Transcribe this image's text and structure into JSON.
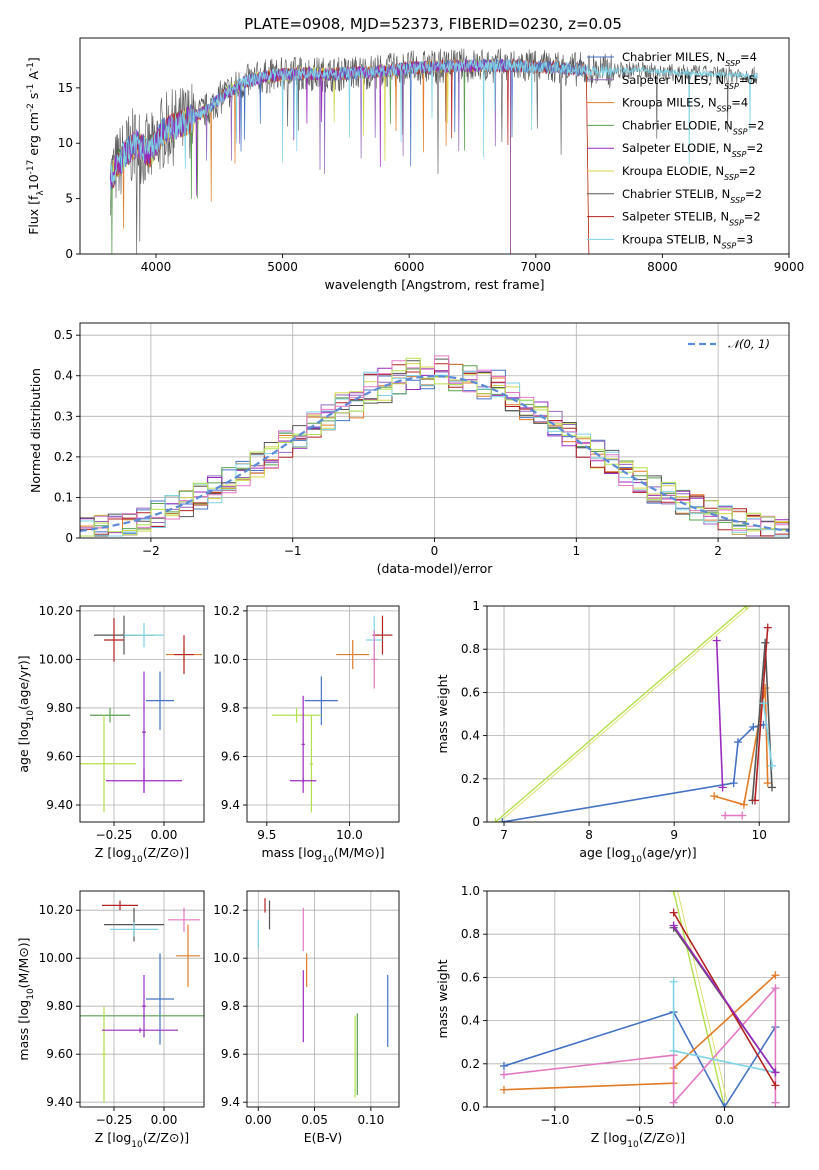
{
  "figure": {
    "title": "PLATE=0908, MJD=52373, FIBERID=0230, z=0.05"
  },
  "colors": {
    "Chabrier MILES": "#4472c4",
    "Salpeter MILES": "#9467bd",
    "Kroupa MILES": "#e07b28",
    "Chabrier ELODIE": "#59a14f",
    "Salpeter ELODIE": "#9a2bbf",
    "Kroupa ELODIE": "#d6d64a",
    "Chabrier STELIB": "#555555",
    "Salpeter STELIB": "#b22222",
    "Kroupa STELIB": "#7fd3e6",
    "normal": "#5b8bd9",
    "lime": "#b4e04d",
    "pink": "#e377c2"
  },
  "chart_data": [
    {
      "id": "spectrum",
      "type": "line",
      "xlabel": "wavelength [Angstrom, rest frame]",
      "ylabel": "Flux [f_λ10^-17 erg cm^-2 s^-1 A^-1]",
      "xlim": [
        3400,
        9000
      ],
      "ylim": [
        0,
        19.5
      ],
      "xticks": [
        4000,
        5000,
        6000,
        7000,
        8000,
        9000
      ],
      "yticks": [
        0,
        5,
        10,
        15
      ],
      "grid": false,
      "legend_placement": "right",
      "legend": [
        {
          "label": "Chabrier MILES, N_SSP=4",
          "color_key": "Chabrier MILES"
        },
        {
          "label": "Salpeter MILES, N_SSP=5",
          "color_key": "Salpeter MILES"
        },
        {
          "label": "Kroupa MILES, N_SSP=4",
          "color_key": "Kroupa MILES"
        },
        {
          "label": "Chabrier ELODIE, N_SSP=2",
          "color_key": "Chabrier ELODIE"
        },
        {
          "label": "Salpeter ELODIE, N_SSP=2",
          "color_key": "Salpeter ELODIE"
        },
        {
          "label": "Kroupa ELODIE, N_SSP=2",
          "color_key": "Kroupa ELODIE"
        },
        {
          "label": "Chabrier STELIB, N_SSP=2",
          "color_key": "Chabrier STELIB"
        },
        {
          "label": "Salpeter STELIB, N_SSP=2",
          "color_key": "Salpeter STELIB"
        },
        {
          "label": "Kroupa STELIB, N_SSP=3",
          "color_key": "Kroupa STELIB"
        }
      ],
      "envelope": [
        [
          3650,
          7
        ],
        [
          3750,
          9
        ],
        [
          3850,
          10
        ],
        [
          3950,
          9
        ],
        [
          4050,
          11
        ],
        [
          4150,
          11.5
        ],
        [
          4250,
          12
        ],
        [
          4400,
          13
        ],
        [
          4550,
          14.5
        ],
        [
          4700,
          15.5
        ],
        [
          4850,
          16
        ],
        [
          5000,
          16.2
        ],
        [
          5200,
          16.3
        ],
        [
          5400,
          16.2
        ],
        [
          5600,
          16.4
        ],
        [
          5800,
          16.5
        ],
        [
          6000,
          16.8
        ],
        [
          6200,
          16.9
        ],
        [
          6400,
          17
        ],
        [
          6600,
          17
        ],
        [
          6800,
          17
        ],
        [
          7000,
          16.9
        ],
        [
          7200,
          16.8
        ],
        [
          7400,
          16.6
        ],
        [
          7600,
          16.5
        ],
        [
          7800,
          16.6
        ],
        [
          8000,
          16.4
        ],
        [
          8200,
          16.3
        ],
        [
          8400,
          16.2
        ],
        [
          8600,
          16.2
        ],
        [
          8750,
          16.1
        ]
      ]
    },
    {
      "id": "residuals",
      "type": "line",
      "xlabel": "(data-model)/error",
      "ylabel": "Normed distribution",
      "xlim": [
        -2.5,
        2.5
      ],
      "ylim": [
        0,
        0.53
      ],
      "xticks": [
        -2,
        -1,
        0,
        1,
        2
      ],
      "yticks": [
        0.0,
        0.1,
        0.2,
        0.3,
        0.4,
        0.5
      ],
      "grid": true,
      "legend_placement": "top-right",
      "legend": [
        {
          "label": "𝒩(0, 1)",
          "color_key": "normal"
        }
      ],
      "bin_width": 0.1
    },
    {
      "id": "age_vs_Z",
      "type": "scatter",
      "xlabel": "Z [log10(Z/Z⊙)]",
      "ylabel": "age  [log10(age/yr)]",
      "xlim": [
        -0.42,
        0.2
      ],
      "ylim": [
        9.33,
        10.22
      ],
      "xticks": [
        -0.25,
        0.0
      ],
      "yticks": [
        9.4,
        9.6,
        9.8,
        10.0,
        10.2
      ],
      "grid": true,
      "points": [
        {
          "x": -0.2,
          "y": 10.1,
          "xerr": 0.15,
          "yerr": 0.08,
          "color_key": "Chabrier STELIB"
        },
        {
          "x": -0.25,
          "y": 10.08,
          "xerr": 0.05,
          "yerr": 0.09,
          "color_key": "Salpeter STELIB"
        },
        {
          "x": -0.1,
          "y": 10.1,
          "xerr": 0.1,
          "yerr": 0.05,
          "color_key": "Kroupa STELIB"
        },
        {
          "x": 0.1,
          "y": 10.02,
          "xerr": 0.09,
          "yerr": 0.03,
          "color_key": "Kroupa MILES"
        },
        {
          "x": 0.1,
          "y": 10.02,
          "xerr": 0.05,
          "yerr": 0.08,
          "color_key": "Salpeter STELIB"
        },
        {
          "x": -0.02,
          "y": 9.83,
          "xerr": 0.07,
          "yerr": 0.12,
          "color_key": "Chabrier MILES"
        },
        {
          "x": -0.27,
          "y": 9.77,
          "xerr": 0.1,
          "yerr": 0.03,
          "color_key": "Chabrier ELODIE"
        },
        {
          "x": -0.3,
          "y": 9.57,
          "xerr": 0.16,
          "yerr": 0.2,
          "color_key": "lime"
        },
        {
          "x": -0.1,
          "y": 9.5,
          "xerr": 0.19,
          "yerr": 0.05,
          "color_key": "Salpeter ELODIE"
        },
        {
          "x": -0.1,
          "y": 9.7,
          "xerr": 0.01,
          "yerr": 0.25,
          "color_key": "Salpeter ELODIE"
        }
      ]
    },
    {
      "id": "age_vs_mass",
      "type": "scatter",
      "xlabel": "mass [log10(M/M⊙)]",
      "ylabel": "",
      "xlim": [
        9.38,
        10.3
      ],
      "ylim": [
        9.33,
        10.22
      ],
      "xticks": [
        9.5,
        10.0
      ],
      "yticks": [
        9.4,
        9.6,
        9.8,
        10.0,
        10.2
      ],
      "grid": true,
      "points": [
        {
          "x": 10.2,
          "y": 10.1,
          "xerr": 0.06,
          "yerr": 0.08,
          "color_key": "Salpeter STELIB"
        },
        {
          "x": 10.15,
          "y": 10.08,
          "xerr": 0.05,
          "yerr": 0.1,
          "color_key": "Kroupa STELIB"
        },
        {
          "x": 10.02,
          "y": 10.02,
          "xerr": 0.1,
          "yerr": 0.06,
          "color_key": "Kroupa MILES"
        },
        {
          "x": 10.15,
          "y": 10.0,
          "xerr": 0.02,
          "yerr": 0.12,
          "color_key": "pink"
        },
        {
          "x": 9.83,
          "y": 9.83,
          "xerr": 0.1,
          "yerr": 0.1,
          "color_key": "Chabrier MILES"
        },
        {
          "x": 9.68,
          "y": 9.77,
          "xerr": 0.15,
          "yerr": 0.03,
          "color_key": "lime"
        },
        {
          "x": 9.77,
          "y": 9.57,
          "xerr": 0.01,
          "yerr": 0.2,
          "color_key": "lime"
        },
        {
          "x": 9.72,
          "y": 9.5,
          "xerr": 0.08,
          "yerr": 0.01,
          "color_key": "Salpeter ELODIE"
        },
        {
          "x": 9.72,
          "y": 9.65,
          "xerr": 0.01,
          "yerr": 0.2,
          "color_key": "Salpeter ELODIE"
        }
      ]
    },
    {
      "id": "weight_vs_age",
      "type": "line",
      "xlabel": "age  [log10(age/yr)]",
      "ylabel": "mass weight",
      "xlim": [
        6.8,
        10.35
      ],
      "ylim": [
        0,
        1.0
      ],
      "xticks": [
        7,
        8,
        9,
        10
      ],
      "yticks": [
        0.0,
        0.2,
        0.4,
        0.6,
        0.8,
        1.0
      ],
      "grid": true,
      "series": [
        {
          "color_key": "lime",
          "x": [
            6.9,
            9.85
          ],
          "y": [
            0.0,
            1.0
          ]
        },
        {
          "color_key": "Chabrier MILES",
          "x": [
            6.98,
            9.7,
            9.75,
            9.93,
            10.05
          ],
          "y": [
            0.0,
            0.18,
            0.37,
            0.44,
            0.45
          ]
        },
        {
          "color_key": "Salpeter ELODIE",
          "x": [
            9.5,
            9.57
          ],
          "y": [
            0.84,
            0.16
          ]
        },
        {
          "color_key": "Kroupa MILES",
          "x": [
            9.47,
            9.82,
            10.07,
            10.1
          ],
          "y": [
            0.12,
            0.08,
            0.62,
            0.18
          ]
        },
        {
          "color_key": "pink",
          "x": [
            9.6,
            9.8
          ],
          "y": [
            0.03,
            0.03
          ]
        },
        {
          "color_key": "Chabrier STELIB",
          "x": [
            9.92,
            10.07,
            10.15
          ],
          "y": [
            0.1,
            0.83,
            0.16
          ]
        },
        {
          "color_key": "Salpeter STELIB",
          "x": [
            9.95,
            10.1
          ],
          "y": [
            0.1,
            0.9
          ]
        },
        {
          "color_key": "Kroupa STELIB",
          "x": [
            10.05,
            10.15
          ],
          "y": [
            0.55,
            0.26
          ]
        }
      ]
    },
    {
      "id": "mass_vs_Z",
      "type": "scatter",
      "xlabel": "Z [log10(Z/Z⊙)]",
      "ylabel": "mass [log10(M/M⊙)]",
      "xlim": [
        -0.42,
        0.2
      ],
      "ylim": [
        9.38,
        10.28
      ],
      "xticks": [
        -0.25,
        0.0
      ],
      "yticks": [
        9.4,
        9.6,
        9.8,
        10.0,
        10.2
      ],
      "grid": true,
      "points": [
        {
          "x": -0.22,
          "y": 10.22,
          "xerr": 0.09,
          "yerr": 0.02,
          "color_key": "Salpeter STELIB"
        },
        {
          "x": -0.15,
          "y": 10.14,
          "xerr": 0.15,
          "yerr": 0.07,
          "color_key": "Chabrier STELIB"
        },
        {
          "x": -0.15,
          "y": 10.12,
          "xerr": 0.12,
          "yerr": 0.03,
          "color_key": "Kroupa STELIB"
        },
        {
          "x": 0.1,
          "y": 10.16,
          "xerr": 0.08,
          "yerr": 0.05,
          "color_key": "pink"
        },
        {
          "x": 0.12,
          "y": 10.01,
          "xerr": 0.06,
          "yerr": 0.13,
          "color_key": "Kroupa MILES"
        },
        {
          "x": -0.02,
          "y": 9.83,
          "xerr": 0.07,
          "yerr": 0.19,
          "color_key": "Chabrier MILES"
        },
        {
          "x": -0.1,
          "y": 9.76,
          "xerr": 0.32,
          "yerr": 0.01,
          "color_key": "Chabrier ELODIE"
        },
        {
          "x": -0.3,
          "y": 9.6,
          "xerr": 0.01,
          "yerr": 0.2,
          "color_key": "lime"
        },
        {
          "x": -0.12,
          "y": 9.7,
          "xerr": 0.19,
          "yerr": 0.01,
          "color_key": "Salpeter ELODIE"
        },
        {
          "x": -0.1,
          "y": 9.8,
          "xerr": 0.01,
          "yerr": 0.13,
          "color_key": "Salpeter ELODIE"
        }
      ]
    },
    {
      "id": "mass_vs_ebv",
      "type": "scatter",
      "xlabel": "E(B-V)",
      "ylabel": "",
      "xlim": [
        -0.01,
        0.125
      ],
      "ylim": [
        9.38,
        10.28
      ],
      "xticks": [
        0.0,
        0.05,
        0.1
      ],
      "yticks": [
        9.4,
        9.6,
        9.8,
        10.0,
        10.2
      ],
      "grid": true,
      "points": [
        {
          "x": 0.006,
          "y": 10.22,
          "xerr": 0.0,
          "yerr": 0.03,
          "color_key": "Salpeter STELIB"
        },
        {
          "x": 0.01,
          "y": 10.18,
          "xerr": 0.0,
          "yerr": 0.06,
          "color_key": "Chabrier STELIB"
        },
        {
          "x": 0.0,
          "y": 10.1,
          "xerr": 0.0,
          "yerr": 0.06,
          "color_key": "Kroupa STELIB"
        },
        {
          "x": 0.04,
          "y": 10.12,
          "xerr": 0.0,
          "yerr": 0.09,
          "color_key": "pink"
        },
        {
          "x": 0.043,
          "y": 9.95,
          "xerr": 0.0,
          "yerr": 0.07,
          "color_key": "Kroupa MILES"
        },
        {
          "x": 0.04,
          "y": 9.8,
          "xerr": 0.0,
          "yerr": 0.15,
          "color_key": "Salpeter ELODIE"
        },
        {
          "x": 0.088,
          "y": 9.6,
          "xerr": 0.0,
          "yerr": 0.17,
          "color_key": "Chabrier ELODIE"
        },
        {
          "x": 0.086,
          "y": 9.59,
          "xerr": 0.0,
          "yerr": 0.17,
          "color_key": "lime"
        },
        {
          "x": 0.115,
          "y": 9.78,
          "xerr": 0.0,
          "yerr": 0.15,
          "color_key": "Chabrier MILES"
        }
      ]
    },
    {
      "id": "weight_vs_Z",
      "type": "line",
      "xlabel": "Z [log10(Z/Z⊙)]",
      "ylabel": "mass weight",
      "xlim": [
        -1.4,
        0.38
      ],
      "ylim": [
        0,
        1.0
      ],
      "xticks": [
        -1.0,
        -0.5,
        0.0
      ],
      "yticks": [
        0.0,
        0.2,
        0.4,
        0.6,
        0.8,
        1.0
      ],
      "grid": true,
      "series": [
        {
          "color_key": "lime",
          "x": [
            -0.3,
            0.0
          ],
          "y": [
            1.0,
            0.0
          ]
        },
        {
          "color_key": "Chabrier MILES",
          "x": [
            -1.3,
            -0.3,
            0.0,
            0.3
          ],
          "y": [
            0.19,
            0.44,
            0.0,
            0.37
          ]
        },
        {
          "color_key": "Kroupa MILES",
          "x": [
            -1.3,
            -0.3,
            -0.3,
            0.3
          ],
          "y": [
            0.08,
            0.11,
            0.18,
            0.61
          ]
        },
        {
          "color_key": "pink",
          "x": [
            -1.3,
            -0.3,
            -0.3,
            0.3,
            0.3
          ],
          "y": [
            0.15,
            0.24,
            0.02,
            0.55,
            0.02
          ]
        },
        {
          "color_key": "Kroupa STELIB",
          "x": [
            -0.3,
            -0.3,
            0.3
          ],
          "y": [
            0.58,
            0.26,
            0.16
          ]
        },
        {
          "color_key": "Chabrier STELIB",
          "x": [
            -0.3,
            0.3
          ],
          "y": [
            0.83,
            0.16
          ]
        },
        {
          "color_key": "Salpeter STELIB",
          "x": [
            -0.3,
            0.3
          ],
          "y": [
            0.9,
            0.1
          ]
        },
        {
          "color_key": "Salpeter ELODIE",
          "x": [
            -0.3,
            0.3
          ],
          "y": [
            0.84,
            0.16
          ]
        }
      ]
    }
  ]
}
